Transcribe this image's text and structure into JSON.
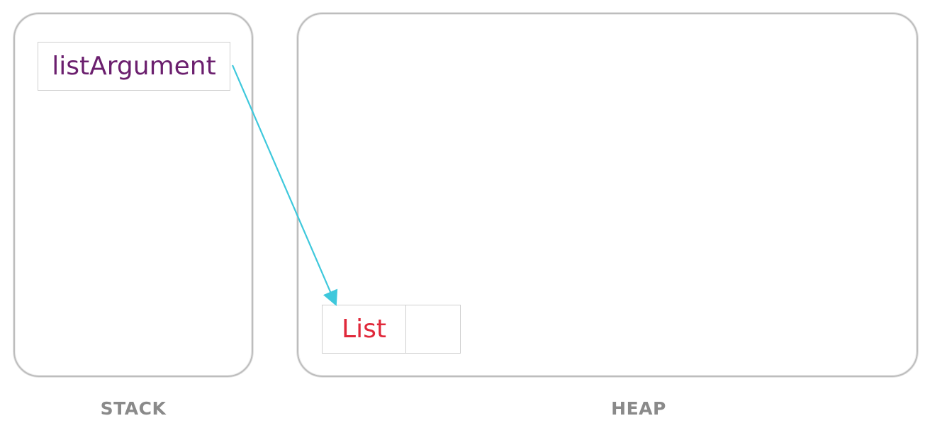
{
  "regions": {
    "stack": {
      "label": "STACK"
    },
    "heap": {
      "label": "HEAP"
    }
  },
  "stack_variable": {
    "name": "listArgument",
    "color": "#6b1f6e"
  },
  "heap_object": {
    "type_label": "List",
    "color": "#e0283a"
  },
  "reference_arrow": {
    "from": "listArgument",
    "to": "List",
    "color": "#3ec8dc"
  }
}
